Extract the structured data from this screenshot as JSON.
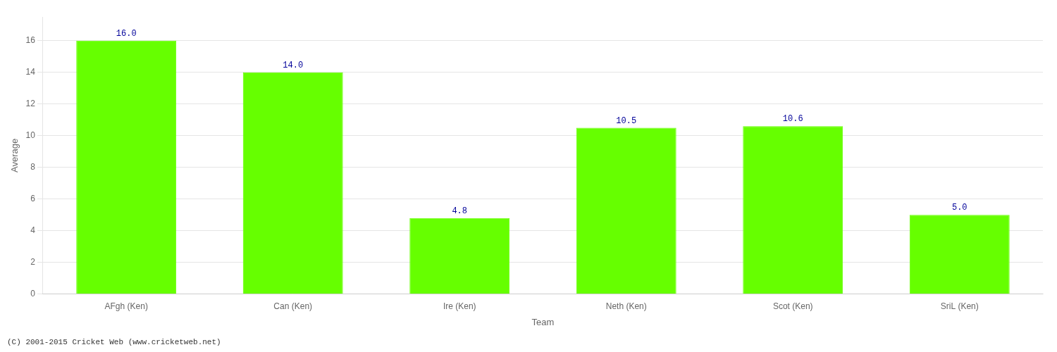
{
  "chart_data": {
    "type": "bar",
    "xlabel": "Team",
    "ylabel": "Average",
    "footnote": "(C) 2001-2015 Cricket Web (www.cricketweb.net)",
    "categories": [
      "AFgh (Ken)",
      "Can (Ken)",
      "Ire (Ken)",
      "Neth (Ken)",
      "Scot (Ken)",
      "SriL (Ken)"
    ],
    "values": [
      16.0,
      14.0,
      4.8,
      10.5,
      10.6,
      5.0
    ],
    "value_labels": [
      "16.0",
      "14.0",
      "4.8",
      "10.5",
      "10.6",
      "5.0"
    ],
    "data_labels": true,
    "color": "#66ff00",
    "ylim": [
      0,
      17.5
    ],
    "yticks": [
      0,
      2,
      4,
      6,
      8,
      10,
      12,
      14,
      16
    ],
    "grid": "y"
  }
}
